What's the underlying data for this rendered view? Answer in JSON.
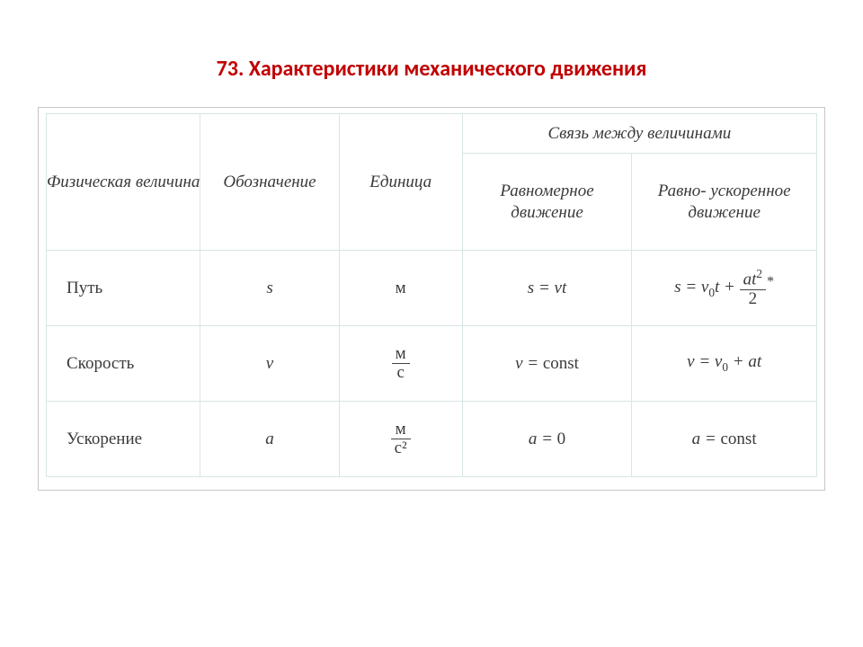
{
  "title_color": "#c00000",
  "title": "73. Характеристики механического движения",
  "header": {
    "col1": "Физическая величина",
    "col2": "Обозначение",
    "col3": "Единица",
    "col45_top": "Связь между величинами",
    "col4": "Равномерное движение",
    "col5": "Равно-\nускоренное движение"
  },
  "rows": [
    {
      "name": "Путь",
      "symbol": "s",
      "unit_type": "plain",
      "unit": "м",
      "uniform": "s = vt",
      "accel_type": "path"
    },
    {
      "name": "Скорость",
      "symbol": "v",
      "unit_type": "frac",
      "unit_num": "м",
      "unit_den": "с",
      "uniform_type": "const",
      "uniform_sym": "v",
      "accel_type": "velocity"
    },
    {
      "name": "Ускорение",
      "symbol": "a",
      "unit_type": "frac",
      "unit_num": "м",
      "unit_den": "с²",
      "uniform_type": "zero",
      "uniform_sym": "a",
      "accel_type": "const",
      "accel_sym": "a"
    }
  ]
}
